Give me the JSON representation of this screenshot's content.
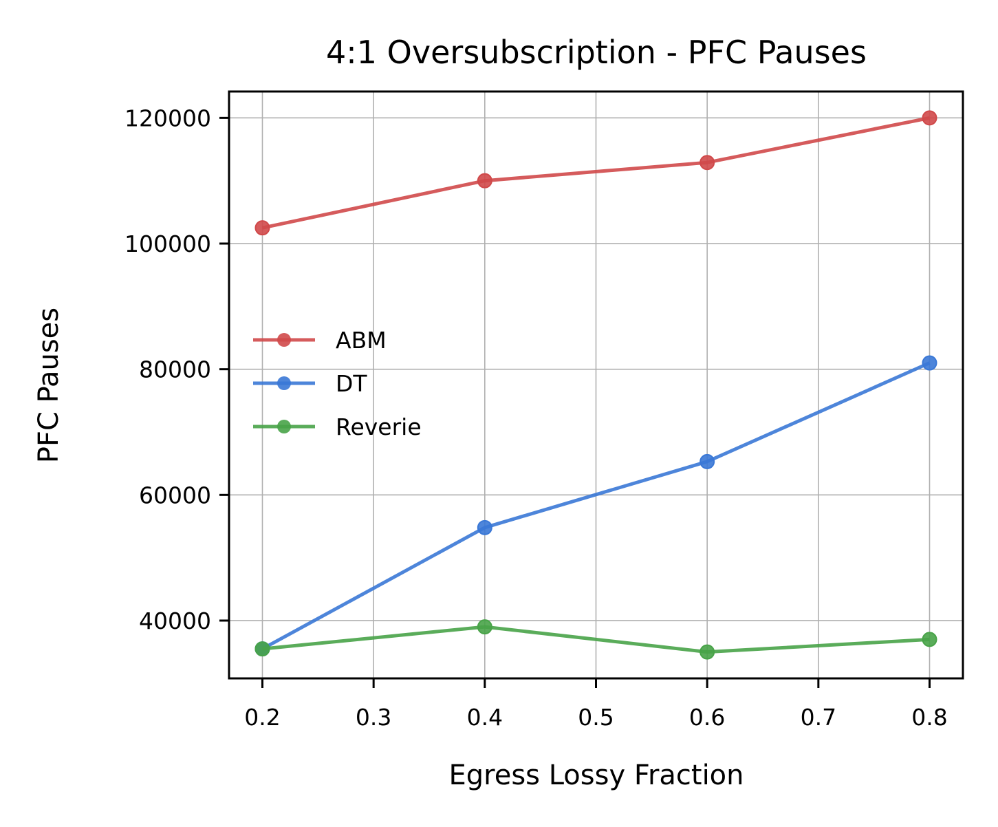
{
  "chart_data": {
    "type": "line",
    "title": "4:1 Oversubscription - PFC Pauses",
    "xlabel": "Egress Lossy Fraction",
    "ylabel": "PFC Pauses",
    "x": [
      0.2,
      0.4,
      0.6,
      0.8
    ],
    "xlim": [
      0.17,
      0.83
    ],
    "ylim": [
      30800,
      124200
    ],
    "xticks": [
      0.2,
      0.3,
      0.4,
      0.5,
      0.6,
      0.7,
      0.8
    ],
    "xtick_labels": [
      "0.2",
      "0.3",
      "0.4",
      "0.5",
      "0.6",
      "0.7",
      "0.8"
    ],
    "yticks": [
      40000,
      60000,
      80000,
      100000,
      120000
    ],
    "ytick_labels": [
      "40000",
      "60000",
      "80000",
      "100000",
      "120000"
    ],
    "grid": true,
    "legend_position": "center-left",
    "series": [
      {
        "name": "ABM",
        "color": "#d0494a",
        "values": [
          102500,
          110000,
          112900,
          120000
        ]
      },
      {
        "name": "DT",
        "color": "#3a78d6",
        "values": [
          35500,
          54800,
          65300,
          81000
        ]
      },
      {
        "name": "Reverie",
        "color": "#48a348",
        "values": [
          35500,
          39000,
          35000,
          37000
        ]
      }
    ]
  }
}
